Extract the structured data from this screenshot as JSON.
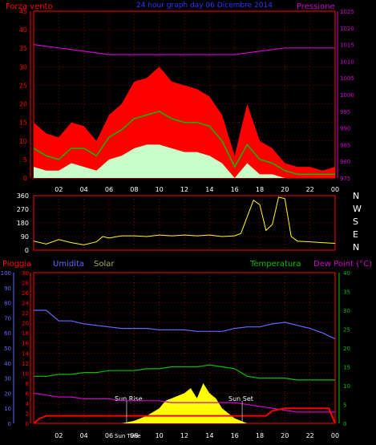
{
  "title": "24 hour graph day 06 Dicembre 2014",
  "x_ticks": [
    "02",
    "04",
    "06",
    "08",
    "10",
    "12",
    "14",
    "16",
    "18",
    "20",
    "22",
    "00"
  ],
  "colors": {
    "wind_max": "#ff0000",
    "wind_avg": "#00c000",
    "wind_min": "#c8ffc8",
    "pressure": "#cc00cc",
    "direction": "#ffff00",
    "rain": "#ff0000",
    "humidity": "#6666ff",
    "solar": "#ffff00",
    "temperature": "#00c000",
    "dewpoint": "#cc00cc",
    "axis_left": "#ff0000",
    "axis_right": "#cc00cc",
    "grid": "#ff0000",
    "tick_text": "#ffffff"
  },
  "chart_data": [
    {
      "type": "line",
      "name": "wind-pressure",
      "series": [
        {
          "name": "Forza vento",
          "x": [
            0,
            1,
            2,
            3,
            4,
            5,
            6,
            7,
            8,
            9,
            10,
            11,
            12,
            13,
            14,
            15,
            16,
            17,
            18,
            19,
            20,
            21,
            22,
            23,
            24
          ],
          "y_max": [
            15,
            12,
            11,
            15,
            14,
            10,
            17,
            20,
            26,
            27,
            30,
            26,
            25,
            24,
            22,
            17,
            6,
            20,
            10,
            8,
            4,
            3,
            3,
            2,
            3
          ],
          "y_avg": [
            8,
            6,
            5,
            8,
            8,
            6,
            11,
            13,
            16,
            17,
            18,
            16,
            15,
            15,
            14,
            10,
            3,
            9,
            5,
            4,
            2,
            1,
            1,
            1,
            1
          ],
          "y_min": [
            3,
            2,
            2,
            4,
            3,
            2,
            5,
            6,
            8,
            9,
            9,
            8,
            7,
            7,
            6,
            4,
            0,
            4,
            1,
            1,
            0,
            0,
            0,
            0,
            0
          ]
        },
        {
          "name": "Pressione",
          "x": [
            0,
            2,
            4,
            6,
            8,
            10,
            12,
            14,
            16,
            18,
            20,
            22,
            24
          ],
          "y": [
            1015,
            1014,
            1013,
            1012,
            1012,
            1012,
            1012,
            1012,
            1012,
            1013,
            1014,
            1014,
            1014
          ]
        }
      ],
      "left_axis": {
        "label": "Forza vento",
        "ylim": [
          0,
          45
        ],
        "ticks": [
          "0",
          "5",
          "10",
          "15",
          "20",
          "25",
          "30",
          "35",
          "40",
          "45"
        ]
      },
      "right_axis": {
        "label": "Pressione",
        "ylim": [
          975,
          1025
        ],
        "ticks": [
          "975",
          "980",
          "985",
          "990",
          "995",
          "1000",
          "1005",
          "1010",
          "1015",
          "1020",
          "1025"
        ]
      }
    },
    {
      "type": "line",
      "name": "wind-direction",
      "series": [
        {
          "name": "direction",
          "x": [
            0,
            1,
            2,
            3,
            4,
            5,
            5.5,
            6,
            7,
            8,
            9,
            10,
            11,
            12,
            13,
            14,
            15,
            16,
            16.5,
            17,
            17.5,
            18,
            18.5,
            19,
            19.5,
            20,
            20.5,
            21,
            22,
            23,
            24
          ],
          "y": [
            60,
            40,
            70,
            50,
            35,
            55,
            90,
            80,
            95,
            95,
            90,
            100,
            95,
            100,
            95,
            100,
            90,
            95,
            110,
            220,
            330,
            300,
            130,
            170,
            350,
            340,
            90,
            60,
            55,
            50,
            45
          ]
        }
      ],
      "ylim": [
        0,
        360
      ],
      "ticks": [
        "0",
        "90",
        "180",
        "270",
        "360"
      ],
      "compass": [
        "N",
        "W",
        "S",
        "E",
        "N"
      ]
    },
    {
      "type": "line",
      "name": "rain-humidity-temp",
      "labels": {
        "rain": "Pioggia",
        "humidity": "Umidita",
        "solar": "Solar",
        "temperature": "Temperatura",
        "dewpoint": "Dew Point (°C)"
      },
      "series": [
        {
          "name": "Umidita",
          "x": [
            0,
            1,
            2,
            3,
            4,
            5,
            6,
            7,
            8,
            9,
            10,
            11,
            12,
            13,
            14,
            15,
            16,
            17,
            18,
            19,
            20,
            21,
            22,
            23,
            24
          ],
          "y": [
            75,
            75,
            68,
            68,
            66,
            65,
            64,
            63,
            63,
            63,
            62,
            62,
            62,
            61,
            61,
            61,
            63,
            64,
            64,
            66,
            67,
            65,
            63,
            60,
            56
          ]
        },
        {
          "name": "Temperatura",
          "x": [
            0,
            1,
            2,
            3,
            4,
            5,
            6,
            7,
            8,
            9,
            10,
            11,
            12,
            13,
            14,
            15,
            16,
            17,
            18,
            19,
            20,
            21,
            22,
            23,
            24
          ],
          "y": [
            12.5,
            12.5,
            13,
            13,
            13.5,
            13.5,
            14,
            14,
            14,
            14.5,
            14.5,
            15,
            15,
            15,
            15.5,
            15,
            14.5,
            12.5,
            12,
            12,
            12,
            11.5,
            11.5,
            11.5,
            11.5
          ]
        },
        {
          "name": "Dew Point",
          "x": [
            0,
            1,
            2,
            3,
            4,
            5,
            6,
            7,
            8,
            9,
            10,
            11,
            12,
            13,
            14,
            15,
            16,
            17,
            18,
            19,
            20,
            21,
            22,
            23,
            24
          ],
          "y": [
            8,
            7.5,
            7,
            7,
            6.5,
            6.5,
            6.5,
            6,
            6,
            6,
            6,
            5.5,
            5.5,
            5.5,
            5.5,
            5.5,
            5.5,
            5,
            4.5,
            4,
            3.5,
            3,
            3,
            3,
            3
          ]
        },
        {
          "name": "Pioggia",
          "x": [
            0,
            0.5,
            1,
            3,
            5,
            7,
            9,
            11,
            13,
            15,
            17,
            18.5,
            19,
            20,
            21,
            22,
            23,
            23.5,
            24
          ],
          "y": [
            0,
            1,
            1.5,
            1.5,
            1.5,
            1.5,
            1.5,
            1.5,
            1.5,
            1.5,
            1.5,
            1.5,
            2.5,
            3,
            3,
            3,
            3,
            3,
            0
          ]
        },
        {
          "name": "Solar",
          "x": [
            7,
            8,
            9,
            10,
            10.5,
            11,
            11.5,
            12,
            12.5,
            13,
            13.5,
            14,
            14.5,
            15,
            16,
            17
          ],
          "y": [
            0,
            0.5,
            1.5,
            3,
            4.5,
            5,
            5.5,
            6,
            7,
            5,
            8,
            6,
            5,
            3,
            1,
            0
          ]
        }
      ],
      "rain_axis": {
        "ylim": [
          0,
          30
        ],
        "ticks": [
          "0",
          "2",
          "4",
          "6",
          "8",
          "10",
          "12",
          "14",
          "16",
          "18",
          "20",
          "22",
          "24",
          "26",
          "28",
          "30"
        ]
      },
      "humidity_axis": {
        "ylim": [
          0,
          100
        ],
        "ticks": [
          "0",
          "10",
          "20",
          "30",
          "40",
          "50",
          "60",
          "70",
          "80",
          "90",
          "100"
        ]
      },
      "temp_axis": {
        "ylim": [
          0,
          40
        ],
        "ticks": [
          "0",
          "5",
          "10",
          "15",
          "20",
          "25",
          "30",
          "35",
          "40"
        ]
      },
      "annotations": [
        "Sun Rise",
        "Sun Set",
        "Sun Time"
      ]
    }
  ]
}
